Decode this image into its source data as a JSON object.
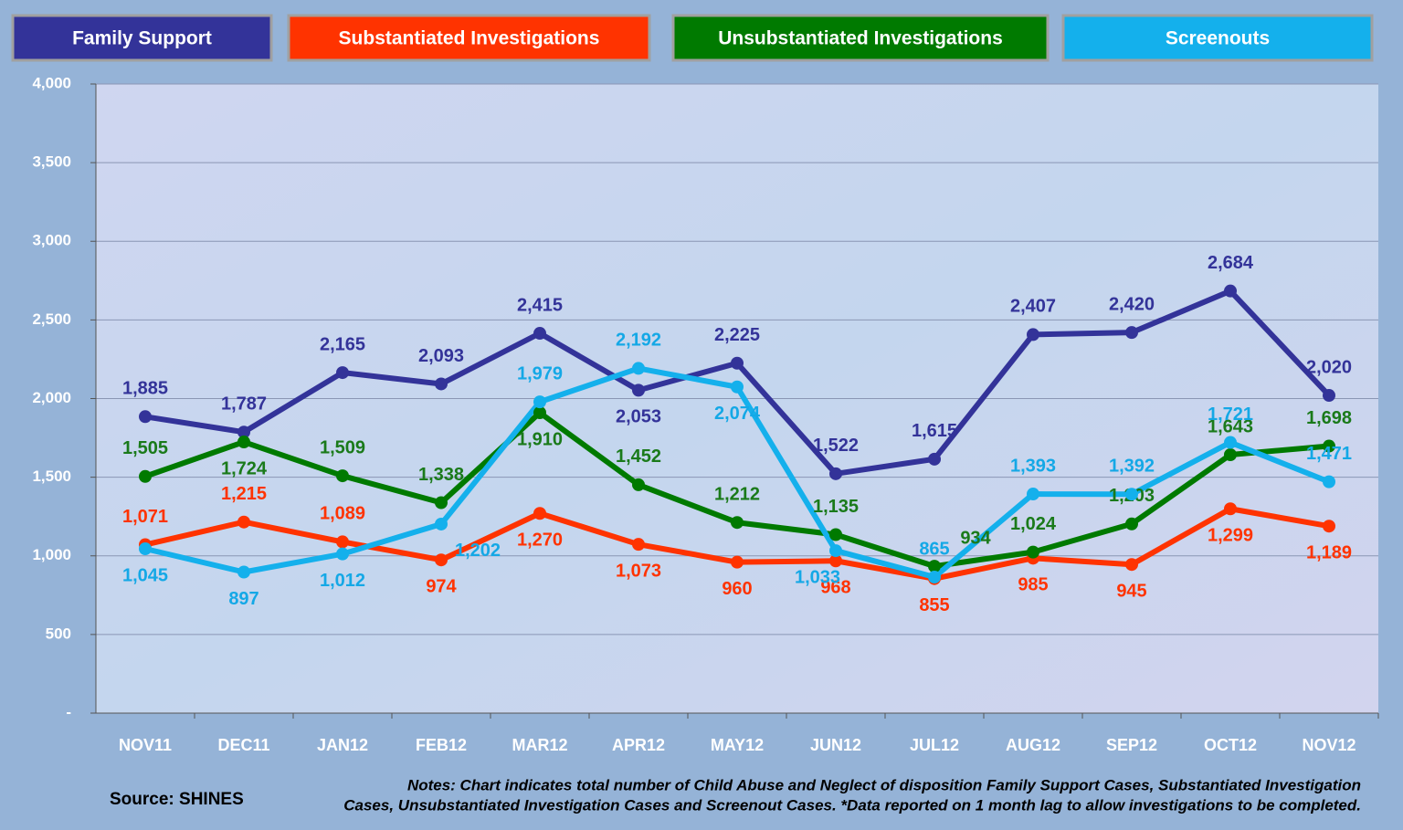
{
  "chart_data": {
    "type": "line",
    "categories": [
      "NOV11",
      "DEC11",
      "JAN12",
      "FEB12",
      "MAR12",
      "APR12",
      "MAY12",
      "JUN12",
      "JUL12",
      "AUG12",
      "SEP12",
      "OCT12",
      "NOV12"
    ],
    "series": [
      {
        "name": "Family Support",
        "color": "#333399",
        "label_color": "#333399",
        "values": [
          1885,
          1787,
          2165,
          2093,
          2415,
          2053,
          2225,
          1522,
          1615,
          2407,
          2420,
          2684,
          2020
        ],
        "value_labels": [
          "1,885",
          "1,787",
          "2,165",
          "2,093",
          "2,415",
          "2,053",
          "2,225",
          "1,522",
          "1,615",
          "2,407",
          "2,420",
          "2,684",
          "2,020"
        ]
      },
      {
        "name": "Substantiated Investigations",
        "color": "#ff3300",
        "label_color": "#ff3300",
        "values": [
          1071,
          1215,
          1089,
          974,
          1270,
          1073,
          960,
          968,
          855,
          985,
          945,
          1299,
          1189
        ],
        "value_labels": [
          "1,071",
          "1,215",
          "1,089",
          "974",
          "1,270",
          "1,073",
          "960",
          "968",
          "855",
          "985",
          "945",
          "1,299",
          "1,189"
        ]
      },
      {
        "name": "Unsubstantiated Investigations",
        "color": "#007a00",
        "label_color": "#1a7a1a",
        "values": [
          1505,
          1724,
          1509,
          1338,
          1910,
          1452,
          1212,
          1135,
          934,
          1024,
          1203,
          1643,
          1698
        ],
        "value_labels": [
          "1,505",
          "1,724",
          "1,509",
          "1,338",
          "1,910",
          "1,452",
          "1,212",
          "1,135",
          "934",
          "1,024",
          "1,203",
          "1,643",
          "1,698"
        ]
      },
      {
        "name": "Screenouts",
        "color": "#14b0ec",
        "label_color": "#14a8e6",
        "values": [
          1045,
          897,
          1012,
          1202,
          1979,
          2192,
          2074,
          1033,
          865,
          1393,
          1392,
          1721,
          1471
        ],
        "value_labels": [
          "1,045",
          "897",
          "1,012",
          "1,202",
          "1,979",
          "2,192",
          "2,074",
          "1,033",
          "865",
          "1,393",
          "1,392",
          "1,721",
          "1,471"
        ]
      }
    ],
    "ylim": [
      0,
      4000
    ],
    "yticks": [
      {
        "value": 0,
        "label": "-"
      },
      500,
      {
        "value": 1000,
        "label": "1,000"
      },
      {
        "value": 1500,
        "label": "1,500"
      },
      {
        "value": 2000,
        "label": "2,000"
      },
      {
        "value": 2500,
        "label": "2,500"
      },
      {
        "value": 3000,
        "label": "3,000"
      },
      {
        "value": 3500,
        "label": "3,500"
      },
      {
        "value": 4000,
        "label": "4,000"
      }
    ],
    "grid": true,
    "source": "Source: SHINES",
    "notes": [
      "Notes: Chart indicates total number of Child Abuse and Neglect of disposition  Family Support Cases, Substantiated Investigation",
      "Cases, Unsubstantiated  Investigation Cases and Screenout Cases.  *Data reported on 1 month lag to allow investigations to be completed."
    ]
  }
}
